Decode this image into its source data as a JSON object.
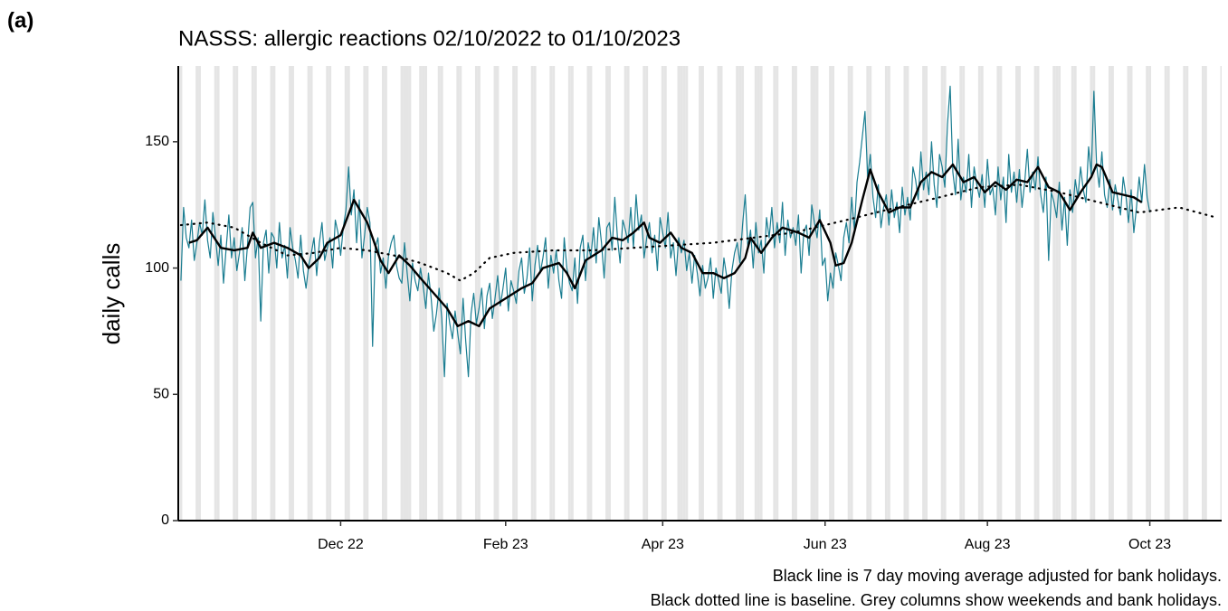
{
  "chart_data": {
    "type": "line",
    "panel_label": "(a)",
    "title": "NASSS: allergic reactions 02/10/2022 to 01/10/2023",
    "ylabel": "daily calls",
    "notes": [
      "Black line is 7 day moving average adjusted for bank holidays.",
      "Black dotted line is baseline. Grey columns show weekends and bank holidays."
    ],
    "xlim": [
      -1,
      391
    ],
    "xticks": [
      {
        "value": 60,
        "label": "Dec 22"
      },
      {
        "value": 122,
        "label": "Feb 23"
      },
      {
        "value": 181,
        "label": "Apr 23"
      },
      {
        "value": 242,
        "label": "Jun 23"
      },
      {
        "value": 303,
        "label": "Aug 23"
      },
      {
        "value": 364,
        "label": "Oct 23"
      }
    ],
    "ylim": [
      0,
      180
    ],
    "yticks": [
      0,
      50,
      100,
      150
    ],
    "shade_color": "#e5e5e5",
    "shaded_x": [
      0,
      6,
      7,
      13,
      14,
      20,
      21,
      27,
      28,
      34,
      35,
      41,
      42,
      48,
      49,
      55,
      56,
      62,
      63,
      69,
      70,
      76,
      77,
      83,
      84,
      85,
      86,
      90,
      91,
      92,
      97,
      98,
      104,
      105,
      111,
      112,
      118,
      119,
      125,
      126,
      132,
      133,
      139,
      140,
      146,
      147,
      153,
      154,
      160,
      161,
      167,
      168,
      174,
      175,
      181,
      182,
      187,
      188,
      189,
      190,
      195,
      196,
      202,
      203,
      209,
      210,
      211,
      216,
      217,
      218,
      223,
      224,
      230,
      231,
      237,
      238,
      239,
      244,
      245,
      251,
      252,
      258,
      259,
      265,
      266,
      272,
      273,
      279,
      280,
      286,
      287,
      293,
      294,
      300,
      301,
      307,
      308,
      314,
      315,
      321,
      322,
      328,
      329,
      330,
      335,
      336,
      342,
      343,
      349,
      350,
      356,
      357,
      363,
      364,
      370,
      371,
      377,
      378,
      384,
      385,
      391
    ],
    "x": [
      0,
      1,
      2,
      3,
      4,
      5,
      6,
      7,
      8,
      9,
      10,
      11,
      12,
      13,
      14,
      15,
      16,
      17,
      18,
      19,
      20,
      21,
      22,
      23,
      24,
      25,
      26,
      27,
      28,
      29,
      30,
      31,
      32,
      33,
      34,
      35,
      36,
      37,
      38,
      39,
      40,
      41,
      42,
      43,
      44,
      45,
      46,
      47,
      48,
      49,
      50,
      51,
      52,
      53,
      54,
      55,
      56,
      57,
      58,
      59,
      60,
      61,
      62,
      63,
      64,
      65,
      66,
      67,
      68,
      69,
      70,
      71,
      72,
      73,
      74,
      75,
      76,
      77,
      78,
      79,
      80,
      81,
      82,
      83,
      84,
      85,
      86,
      87,
      88,
      89,
      90,
      91,
      92,
      93,
      94,
      95,
      96,
      97,
      98,
      99,
      100,
      101,
      102,
      103,
      104,
      105,
      106,
      107,
      108,
      109,
      110,
      111,
      112,
      113,
      114,
      115,
      116,
      117,
      118,
      119,
      120,
      121,
      122,
      123,
      124,
      125,
      126,
      127,
      128,
      129,
      130,
      131,
      132,
      133,
      134,
      135,
      136,
      137,
      138,
      139,
      140,
      141,
      142,
      143,
      144,
      145,
      146,
      147,
      148,
      149,
      150,
      151,
      152,
      153,
      154,
      155,
      156,
      157,
      158,
      159,
      160,
      161,
      162,
      163,
      164,
      165,
      166,
      167,
      168,
      169,
      170,
      171,
      172,
      173,
      174,
      175,
      176,
      177,
      178,
      179,
      180,
      181,
      182,
      183,
      184,
      185,
      186,
      187,
      188,
      189,
      190,
      191,
      192,
      193,
      194,
      195,
      196,
      197,
      198,
      199,
      200,
      201,
      202,
      203,
      204,
      205,
      206,
      207,
      208,
      209,
      210,
      211,
      212,
      213,
      214,
      215,
      216,
      217,
      218,
      219,
      220,
      221,
      222,
      223,
      224,
      225,
      226,
      227,
      228,
      229,
      230,
      231,
      232,
      233,
      234,
      235,
      236,
      237,
      238,
      239,
      240,
      241,
      242,
      243,
      244,
      245,
      246,
      247,
      248,
      249,
      250,
      251,
      252,
      253,
      254,
      255,
      256,
      257,
      258,
      259,
      260,
      261,
      262,
      263,
      264,
      265,
      266,
      267,
      268,
      269,
      270,
      271,
      272,
      273,
      274,
      275,
      276,
      277,
      278,
      279,
      280,
      281,
      282,
      283,
      284,
      285,
      286,
      287,
      288,
      289,
      290,
      291,
      292,
      293,
      294,
      295,
      296,
      297,
      298,
      299,
      300,
      301,
      302,
      303,
      304,
      305,
      306,
      307,
      308,
      309,
      310,
      311,
      312,
      313,
      314,
      315,
      316,
      317,
      318,
      319,
      320,
      321,
      322,
      323,
      324,
      325,
      326,
      327,
      328,
      329,
      330,
      331,
      332,
      333,
      334,
      335,
      336,
      337,
      338,
      339,
      340,
      341,
      342,
      343,
      344,
      345,
      346,
      347,
      348,
      349,
      350,
      351,
      352,
      353,
      354,
      355,
      356,
      357,
      358,
      359,
      360,
      361,
      362,
      363,
      364
    ],
    "series": [
      {
        "color": "#1a7d91",
        "line_width": 1.2,
        "dash": false,
        "values": [
          95,
          124,
          112,
          108,
          119,
          103,
          110,
          118,
          113,
          127,
          111,
          104,
          122,
          112,
          101,
          113,
          94,
          108,
          121,
          104,
          112,
          99,
          106,
          116,
          95,
          109,
          124,
          126,
          104,
          112,
          79,
          110,
          115,
          98,
          114,
          112,
          100,
          118,
          104,
          109,
          96,
          116,
          108,
          103,
          96,
          113,
          99,
          92,
          101,
          106,
          112,
          97,
          110,
          118,
          103,
          108,
          112,
          100,
          119,
          114,
          105,
          116,
          123,
          140,
          121,
          131,
          110,
          127,
          104,
          113,
          124,
          118,
          69,
          108,
          112,
          98,
          104,
          92,
          105,
          110,
          113,
          101,
          96,
          94,
          110,
          98,
          87,
          102,
          95,
          91,
          100,
          93,
          84,
          98,
          88,
          75,
          82,
          92,
          80,
          57,
          86,
          78,
          72,
          83,
          74,
          66,
          88,
          71,
          57,
          82,
          90,
          78,
          84,
          92,
          76,
          89,
          94,
          80,
          88,
          97,
          85,
          92,
          100,
          83,
          95,
          91,
          86,
          99,
          104,
          90,
          96,
          108,
          87,
          101,
          109,
          98,
          104,
          112,
          92,
          105,
          98,
          107,
          95,
          88,
          112,
          100,
          94,
          91,
          104,
          86,
          108,
          113,
          95,
          110,
          104,
          116,
          102,
          120,
          110,
          96,
          116,
          118,
          107,
          128,
          112,
          102,
          119,
          115,
          110,
          124,
          108,
          129,
          115,
          121,
          104,
          112,
          118,
          106,
          113,
          99,
          120,
          114,
          108,
          122,
          104,
          110,
          97,
          112,
          106,
          111,
          99,
          106,
          94,
          105,
          98,
          89,
          101,
          92,
          96,
          104,
          88,
          100,
          95,
          90,
          104,
          97,
          84,
          99,
          106,
          110,
          102,
          117,
          129,
          108,
          115,
          100,
          118,
          106,
          111,
          98,
          120,
          112,
          124,
          108,
          118,
          110,
          126,
          105,
          119,
          112,
          116,
          109,
          121,
          98,
          114,
          117,
          105,
          125,
          118,
          112,
          123,
          101,
          104,
          87,
          98,
          92,
          106,
          101,
          95,
          112,
          118,
          110,
          128,
          115,
          134,
          142,
          152,
          162,
          136,
          145,
          128,
          120,
          133,
          116,
          124,
          129,
          117,
          131,
          120,
          126,
          114,
          132,
          121,
          128,
          119,
          140,
          135,
          127,
          146,
          131,
          138,
          129,
          150,
          133,
          124,
          145,
          140,
          132,
          157,
          172,
          138,
          129,
          151,
          127,
          136,
          130,
          145,
          124,
          140,
          133,
          128,
          137,
          124,
          143,
          129,
          132,
          121,
          140,
          127,
          136,
          118,
          145,
          130,
          138,
          126,
          139,
          124,
          134,
          147,
          130,
          138,
          131,
          144,
          129,
          122,
          136,
          103,
          130,
          126,
          120,
          134,
          115,
          128,
          109,
          131,
          122,
          135,
          128,
          140,
          131,
          126,
          148,
          137,
          170,
          141,
          132,
          146,
          129,
          124,
          135,
          123,
          133,
          127,
          121,
          136,
          129,
          118,
          131,
          114,
          124,
          136,
          126,
          141,
          128,
          122
        ]
      },
      {
        "color": "#000000",
        "line_width": 2.4,
        "dash": false,
        "x": [
          3,
          6,
          10,
          15,
          20,
          25,
          27,
          30,
          35,
          40,
          45,
          48,
          52,
          55,
          60,
          65,
          70,
          75,
          78,
          82,
          86,
          90,
          95,
          100,
          104,
          108,
          112,
          116,
          122,
          128,
          132,
          136,
          142,
          145,
          148,
          152,
          158,
          162,
          166,
          170,
          174,
          176,
          180,
          184,
          188,
          192,
          196,
          200,
          204,
          208,
          212,
          214,
          218,
          222,
          226,
          232,
          236,
          240,
          244,
          246,
          249,
          252,
          256,
          259,
          262,
          266,
          270,
          274,
          278,
          282,
          286,
          290,
          294,
          298,
          302,
          306,
          310,
          314,
          318,
          322,
          326,
          330,
          334,
          338,
          342,
          344,
          346,
          350,
          354,
          358,
          361
        ],
        "values": [
          110,
          111,
          116,
          108,
          107,
          108,
          114,
          108,
          110,
          108,
          105,
          100,
          104,
          110,
          113,
          127,
          118,
          103,
          98,
          105,
          101,
          96,
          90,
          84,
          77,
          79,
          77,
          84,
          88,
          92,
          94,
          100,
          102,
          98,
          92,
          103,
          107,
          112,
          111,
          114,
          118,
          112,
          110,
          114,
          108,
          106,
          98,
          98,
          96,
          98,
          104,
          112,
          106,
          112,
          116,
          114,
          112,
          119,
          110,
          101,
          102,
          110,
          127,
          139,
          130,
          122,
          124,
          124,
          134,
          138,
          136,
          141,
          134,
          136,
          130,
          134,
          131,
          135,
          134,
          140,
          132,
          130,
          123,
          130,
          136,
          141,
          140,
          130,
          129,
          128,
          126
        ]
      },
      {
        "color": "#000000",
        "line_width": 2.2,
        "dash": true,
        "x": [
          0,
          10,
          20,
          30,
          40,
          50,
          60,
          70,
          80,
          90,
          100,
          105,
          110,
          116,
          125,
          140,
          155,
          170,
          185,
          200,
          215,
          230,
          250,
          265,
          285,
          300,
          315,
          330,
          345,
          360,
          375,
          389
        ],
        "values": [
          117,
          118,
          116,
          110,
          105,
          106,
          108,
          107,
          105,
          102,
          98,
          95,
          98,
          104,
          106,
          107,
          107,
          108,
          109,
          110,
          112,
          114,
          119,
          123,
          128,
          132,
          133,
          130,
          126,
          122,
          124,
          120
        ]
      }
    ]
  }
}
